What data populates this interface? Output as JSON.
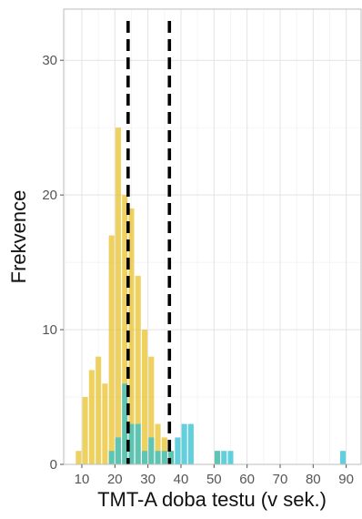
{
  "chart_data": {
    "type": "bar",
    "title": "",
    "xlabel": "TMT-A doba testu (v sek.)",
    "ylabel": "Frekvence",
    "xlim": [
      4.5,
      94.5
    ],
    "ylim": [
      0,
      33.8
    ],
    "x_ticks": [
      10,
      20,
      30,
      40,
      50,
      60,
      70,
      80,
      90
    ],
    "y_ticks": [
      0,
      10,
      20,
      30
    ],
    "grid": true,
    "bin_width": 2,
    "series": [
      {
        "color": "#E8C12A",
        "bins": [
          {
            "x": 9,
            "count": 1
          },
          {
            "x": 11,
            "count": 5
          },
          {
            "x": 13,
            "count": 7
          },
          {
            "x": 15,
            "count": 8
          },
          {
            "x": 17,
            "count": 6
          },
          {
            "x": 19,
            "count": 17
          },
          {
            "x": 21,
            "count": 25
          },
          {
            "x": 23,
            "count": 20
          },
          {
            "x": 25,
            "count": 19
          },
          {
            "x": 27,
            "count": 14
          },
          {
            "x": 29,
            "count": 10
          },
          {
            "x": 31,
            "count": 8
          },
          {
            "x": 33,
            "count": 3
          },
          {
            "x": 35,
            "count": 2
          },
          {
            "x": 37,
            "count": 1
          },
          {
            "x": 51,
            "count": 1
          }
        ]
      },
      {
        "color": "#2EC0D0",
        "bins": [
          {
            "x": 19,
            "count": 1
          },
          {
            "x": 21,
            "count": 2
          },
          {
            "x": 23,
            "count": 6
          },
          {
            "x": 25,
            "count": 3
          },
          {
            "x": 27,
            "count": 3
          },
          {
            "x": 29,
            "count": 1
          },
          {
            "x": 31,
            "count": 2
          },
          {
            "x": 33,
            "count": 1
          },
          {
            "x": 35,
            "count": 1
          },
          {
            "x": 37,
            "count": 1
          },
          {
            "x": 39,
            "count": 2
          },
          {
            "x": 41,
            "count": 3
          },
          {
            "x": 43,
            "count": 3
          },
          {
            "x": 51,
            "count": 1
          },
          {
            "x": 53,
            "count": 1
          },
          {
            "x": 55,
            "count": 1
          },
          {
            "x": 89,
            "count": 1
          }
        ]
      }
    ],
    "reference_lines": [
      {
        "x": 24,
        "style": "dashed",
        "color": "#000000"
      },
      {
        "x": 36.5,
        "style": "dashed",
        "color": "#000000"
      }
    ]
  }
}
